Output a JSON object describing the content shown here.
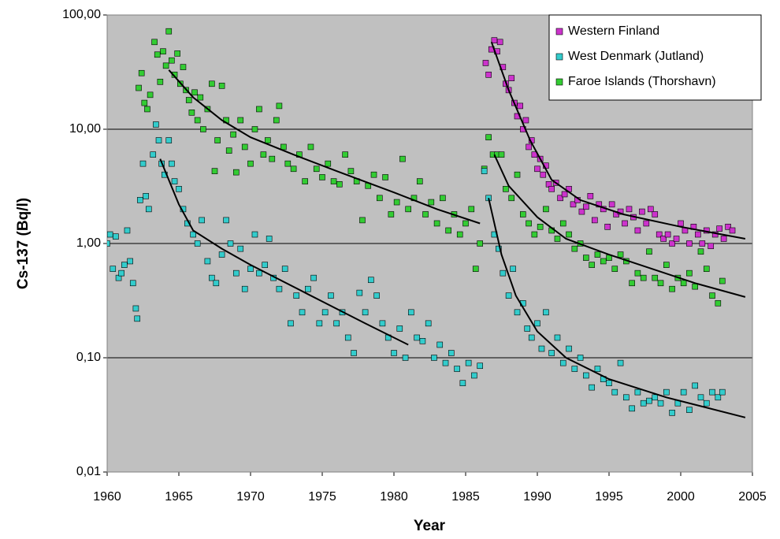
{
  "chart_data": {
    "type": "scatter",
    "log_scale": true,
    "grid": true,
    "legend": "top-right",
    "background": "#c0c0c0",
    "trendline_color": "#000000",
    "xlabel": "Year",
    "ylabel": "Cs-137 (Bq/l)",
    "xlim": [
      1960,
      2005
    ],
    "xticks": [
      1960,
      1965,
      1970,
      1975,
      1980,
      1985,
      1990,
      1995,
      2000,
      2005
    ],
    "ylim": [
      0.01,
      100
    ],
    "yticks": [
      {
        "value": 0.01,
        "label": "0,01"
      },
      {
        "value": 0.1,
        "label": "0,10"
      },
      {
        "value": 1,
        "label": "1,00"
      },
      {
        "value": 10,
        "label": "10,00"
      },
      {
        "value": 100,
        "label": "100,00"
      }
    ],
    "series": [
      {
        "name": "Western Finland",
        "color": "#cc33cc",
        "x": [
          1986.4,
          1986.6,
          1986.8,
          1987,
          1987.2,
          1987.4,
          1987.6,
          1987.8,
          1988,
          1988.2,
          1988.4,
          1988.6,
          1988.8,
          1989,
          1989.2,
          1989.4,
          1989.6,
          1989.8,
          1990,
          1990.2,
          1990.4,
          1990.6,
          1990.8,
          1991,
          1991.3,
          1991.6,
          1991.9,
          1992.2,
          1992.5,
          1992.8,
          1993.1,
          1993.4,
          1993.7,
          1994,
          1994.3,
          1994.6,
          1994.9,
          1995.2,
          1995.5,
          1995.8,
          1996.1,
          1996.4,
          1996.7,
          1997,
          1997.3,
          1997.6,
          1997.9,
          1998.2,
          1998.5,
          1998.8,
          1999.1,
          1999.4,
          1999.7,
          2000,
          2000.3,
          2000.6,
          2000.9,
          2001.2,
          2001.5,
          2001.8,
          2002.1,
          2002.4,
          2002.7,
          2003,
          2003.3,
          2003.6
        ],
        "values": [
          38,
          30,
          50,
          60,
          48,
          58,
          35,
          25,
          22,
          28,
          17,
          13,
          16,
          10,
          12,
          7,
          8,
          6,
          4.5,
          5.5,
          4,
          4.8,
          3.3,
          3,
          3.4,
          2.5,
          2.7,
          3.0,
          2.2,
          2.4,
          1.9,
          2.1,
          2.6,
          1.6,
          2.2,
          2.0,
          1.4,
          2.2,
          1.8,
          1.9,
          1.5,
          2.0,
          1.7,
          1.3,
          1.9,
          1.5,
          2.0,
          1.8,
          1.2,
          1.1,
          1.2,
          1.0,
          1.1,
          1.5,
          1.3,
          1.0,
          1.4,
          1.2,
          1.0,
          1.3,
          0.95,
          1.2,
          1.35,
          1.1,
          1.4,
          1.3
        ]
      },
      {
        "name": "West Denmark (Jutland)",
        "color": "#33cccc",
        "x": [
          1960,
          1960.2,
          1960.4,
          1960.6,
          1960.8,
          1961,
          1961.2,
          1961.4,
          1961.6,
          1961.8,
          1962,
          1962.1,
          1962.3,
          1962.5,
          1962.7,
          1962.9,
          1963.2,
          1963.4,
          1963.6,
          1963.8,
          1964,
          1964.3,
          1964.5,
          1964.7,
          1965,
          1965.3,
          1965.6,
          1966,
          1966.3,
          1966.6,
          1967,
          1967.3,
          1967.6,
          1968,
          1968.3,
          1968.6,
          1969,
          1969.3,
          1969.6,
          1970,
          1970.3,
          1970.6,
          1971,
          1971.3,
          1971.6,
          1972,
          1972.4,
          1972.8,
          1973.2,
          1973.6,
          1974,
          1974.4,
          1974.8,
          1975.2,
          1975.6,
          1976,
          1976.4,
          1976.8,
          1977.2,
          1977.6,
          1978,
          1978.4,
          1978.8,
          1979.2,
          1979.6,
          1980,
          1980.4,
          1980.8,
          1981.2,
          1981.6,
          1982,
          1982.4,
          1982.8,
          1983.2,
          1983.6,
          1984,
          1984.4,
          1984.8,
          1985.2,
          1985.6,
          1986,
          1986.3,
          1986.6,
          1987,
          1987.3,
          1987.6,
          1988,
          1988.3,
          1988.6,
          1989,
          1989.3,
          1989.6,
          1990,
          1990.3,
          1990.6,
          1991,
          1991.4,
          1991.8,
          1992.2,
          1992.6,
          1993,
          1993.4,
          1993.8,
          1994.2,
          1994.6,
          1995,
          1995.4,
          1995.8,
          1996.2,
          1996.6,
          1997,
          1997.4,
          1997.8,
          1998.2,
          1998.6,
          1999,
          1999.4,
          1999.8,
          2000.2,
          2000.6,
          2001,
          2001.4,
          2001.8,
          2002.2,
          2002.6,
          2002.9
        ],
        "values": [
          1.0,
          1.2,
          0.6,
          1.15,
          0.5,
          0.55,
          0.65,
          1.3,
          0.7,
          0.45,
          0.27,
          0.22,
          2.4,
          5,
          2.6,
          2.0,
          6,
          11,
          8,
          5,
          4.0,
          8,
          5,
          3.5,
          3,
          2.0,
          1.5,
          1.2,
          1.0,
          1.6,
          0.7,
          0.5,
          0.45,
          0.8,
          1.6,
          1.0,
          0.55,
          0.9,
          0.4,
          0.6,
          1.2,
          0.55,
          0.65,
          1.1,
          0.5,
          0.4,
          0.6,
          0.2,
          0.35,
          0.25,
          0.4,
          0.5,
          0.2,
          0.25,
          0.35,
          0.2,
          0.25,
          0.15,
          0.11,
          0.37,
          0.25,
          0.48,
          0.35,
          0.2,
          0.15,
          0.11,
          0.18,
          0.1,
          0.25,
          0.15,
          0.14,
          0.2,
          0.1,
          0.13,
          0.09,
          0.11,
          0.08,
          0.06,
          0.09,
          0.07,
          0.085,
          4.3,
          2.5,
          1.2,
          0.9,
          0.55,
          0.35,
          0.6,
          0.25,
          0.3,
          0.18,
          0.15,
          0.2,
          0.12,
          0.25,
          0.11,
          0.15,
          0.09,
          0.12,
          0.08,
          0.1,
          0.07,
          0.055,
          0.08,
          0.065,
          0.06,
          0.05,
          0.09,
          0.045,
          0.036,
          0.05,
          0.04,
          0.042,
          0.045,
          0.04,
          0.05,
          0.033,
          0.04,
          0.05,
          0.035,
          0.057,
          0.045,
          0.04,
          0.05,
          0.045,
          0.05
        ]
      },
      {
        "name": "Faroe Islands (Thorshavn)",
        "color": "#33cc33",
        "x": [
          1962.2,
          1962.4,
          1962.6,
          1962.8,
          1963,
          1963.3,
          1963.5,
          1963.7,
          1963.9,
          1964.1,
          1964.3,
          1964.5,
          1964.7,
          1964.9,
          1965.1,
          1965.3,
          1965.5,
          1965.7,
          1965.9,
          1966.1,
          1966.3,
          1966.5,
          1966.7,
          1967,
          1967.3,
          1967.5,
          1967.7,
          1968,
          1968.3,
          1968.5,
          1968.8,
          1969,
          1969.3,
          1969.6,
          1970,
          1970.3,
          1970.6,
          1970.9,
          1971.2,
          1971.5,
          1971.8,
          1972,
          1972.3,
          1972.6,
          1973,
          1973.4,
          1973.8,
          1974.2,
          1974.6,
          1975,
          1975.4,
          1975.8,
          1976.2,
          1976.6,
          1977,
          1977.4,
          1977.8,
          1978.2,
          1978.6,
          1979,
          1979.4,
          1979.8,
          1980.2,
          1980.6,
          1981,
          1981.4,
          1981.8,
          1982.2,
          1982.6,
          1983,
          1983.4,
          1983.8,
          1984.2,
          1984.6,
          1985,
          1985.4,
          1985.7,
          1986,
          1986.3,
          1986.6,
          1986.9,
          1987.2,
          1987.5,
          1987.8,
          1988.2,
          1988.6,
          1989,
          1989.4,
          1989.8,
          1990.2,
          1990.6,
          1991,
          1991.4,
          1991.8,
          1992.2,
          1992.6,
          1993,
          1993.4,
          1993.8,
          1994.2,
          1994.6,
          1995,
          1995.4,
          1995.8,
          1996.2,
          1996.6,
          1997,
          1997.4,
          1997.8,
          1998.2,
          1998.6,
          1999,
          1999.4,
          1999.8,
          2000.2,
          2000.6,
          2001,
          2001.4,
          2001.8,
          2002.2,
          2002.6,
          2002.9
        ],
        "values": [
          23,
          31,
          17,
          15,
          20,
          58,
          45,
          26,
          48,
          36,
          72,
          40,
          30,
          46,
          25,
          35,
          22,
          18,
          14,
          21,
          12,
          19,
          10,
          15,
          25,
          4.3,
          8,
          24,
          12,
          6.5,
          9,
          4.2,
          12,
          7,
          5,
          10,
          15,
          6,
          8,
          5.5,
          12,
          16,
          7,
          5,
          4.5,
          6,
          3.5,
          7,
          4.5,
          3.8,
          5,
          3.5,
          3.3,
          6,
          4.3,
          3.5,
          1.6,
          3.2,
          4.0,
          2.5,
          3.8,
          1.8,
          2.3,
          5.5,
          2.0,
          2.5,
          3.5,
          1.8,
          2.3,
          1.5,
          2.5,
          1.3,
          1.8,
          1.2,
          1.5,
          2.0,
          0.6,
          1.0,
          4.5,
          8.5,
          6,
          6,
          6,
          3,
          2.5,
          4.0,
          1.8,
          1.5,
          1.2,
          1.4,
          2.0,
          1.3,
          1.1,
          1.5,
          1.2,
          0.9,
          1.0,
          0.75,
          0.65,
          0.8,
          0.7,
          0.75,
          0.6,
          0.8,
          0.7,
          0.45,
          0.55,
          0.5,
          0.85,
          0.5,
          0.45,
          0.65,
          0.4,
          0.5,
          0.45,
          0.55,
          0.42,
          0.85,
          0.6,
          0.35,
          0.3,
          0.47
        ]
      }
    ],
    "trendlines": [
      {
        "x": [
          1964.3,
          1966,
          1968,
          1970,
          1973,
          1976,
          1980,
          1983,
          1986
        ],
        "y": [
          33,
          19,
          12,
          8.5,
          6,
          4.3,
          2.8,
          2.0,
          1.5
        ]
      },
      {
        "x": [
          1963.7,
          1965,
          1966,
          1968,
          1970,
          1974,
          1978,
          1981
        ],
        "y": [
          5.5,
          2.2,
          1.3,
          0.9,
          0.65,
          0.36,
          0.2,
          0.13
        ]
      },
      {
        "x": [
          1987,
          1988,
          1990,
          1992,
          1995,
          1998,
          2001,
          2004.5
        ],
        "y": [
          6,
          3.2,
          1.7,
          1.1,
          0.8,
          0.6,
          0.45,
          0.34
        ]
      },
      {
        "x": [
          1986.6,
          1987.5,
          1988.5,
          1990,
          1992,
          1995,
          1999,
          2004.5
        ],
        "y": [
          2.5,
          0.8,
          0.35,
          0.17,
          0.1,
          0.065,
          0.045,
          0.03
        ]
      },
      {
        "x": [
          1986.8,
          1988,
          1989.5,
          1991,
          1993,
          1996,
          2000,
          2004.5
        ],
        "y": [
          58,
          22,
          8,
          3.6,
          2.4,
          1.8,
          1.4,
          1.1
        ]
      }
    ]
  }
}
